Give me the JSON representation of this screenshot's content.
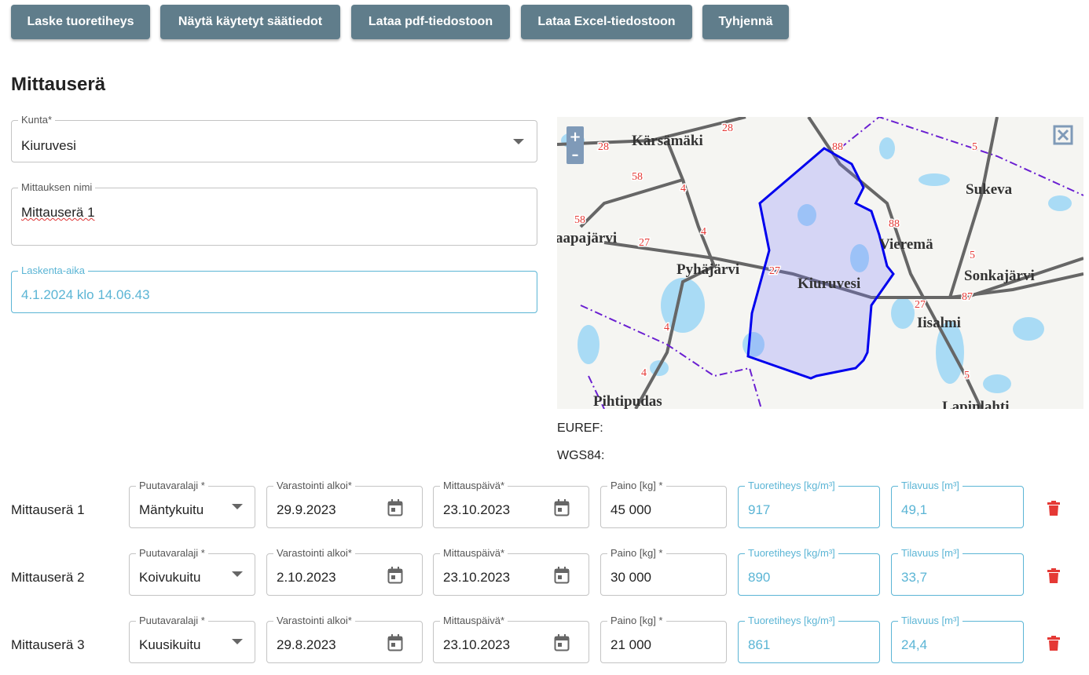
{
  "toolbar": {
    "buttons": [
      "Laske tuoretiheys",
      "Näytä käytetyt säätiedot",
      "Lataa pdf-tiedostoon",
      "Lataa Excel-tiedostoon",
      "Tyhjennä"
    ]
  },
  "section_title": "Mittauserä",
  "form": {
    "kunta": {
      "label": "Kunta*",
      "value": "Kiuruvesi"
    },
    "nimi": {
      "label": "Mittauksen nimi",
      "value": "Mittauserä 1"
    },
    "aika": {
      "label": "Laskenta-aika",
      "value": "4.1.2024 klo 14.06.43"
    }
  },
  "map": {
    "zoom_in": "+",
    "zoom_out": "–",
    "places": [
      "Kärsämäki",
      "Sukeva",
      "aapajärvi",
      "Vieremä",
      "Pyhäjärvi",
      "Sonkajärvi",
      "Kiuruvesi",
      "Iisalmi",
      "Pihtipudas",
      "Lapinlahti"
    ],
    "roads": [
      "28",
      "28",
      "58",
      "4",
      "4",
      "27",
      "58",
      "88",
      "88",
      "5",
      "5",
      "27",
      "27",
      "87",
      "4",
      "4",
      "5"
    ]
  },
  "coordinates": {
    "euref": "EUREF:",
    "wgs84": "WGS84:"
  },
  "rows": [
    {
      "name": "Mittauserä 1",
      "fields": [
        {
          "label": "Puutavaralaji *",
          "value": "Mäntykuitu"
        },
        {
          "label": "Varastointi alkoi*",
          "value": "29.9.2023"
        },
        {
          "label": "Mittauspäivä*",
          "value": "23.10.2023"
        },
        {
          "label": "Paino [kg] *",
          "value": "45 000"
        },
        {
          "label": "Tuoretiheys [kg/m³]",
          "value": "917"
        },
        {
          "label": "Tilavuus [m³]",
          "value": "49,1"
        }
      ]
    },
    {
      "name": "Mittauserä 2",
      "fields": [
        {
          "label": "Puutavaralaji *",
          "value": "Koivukuitu"
        },
        {
          "label": "Varastointi alkoi*",
          "value": "2.10.2023"
        },
        {
          "label": "Mittauspäivä*",
          "value": "23.10.2023"
        },
        {
          "label": "Paino [kg] *",
          "value": "30 000"
        },
        {
          "label": "Tuoretiheys [kg/m³]",
          "value": "890"
        },
        {
          "label": "Tilavuus [m³]",
          "value": "33,7"
        }
      ]
    },
    {
      "name": "Mittauserä 3",
      "fields": [
        {
          "label": "Puutavaralaji *",
          "value": "Kuusikuitu"
        },
        {
          "label": "Varastointi alkoi*",
          "value": "29.8.2023"
        },
        {
          "label": "Mittauspäivä*",
          "value": "23.10.2023"
        },
        {
          "label": "Paino [kg] *",
          "value": "21 000"
        },
        {
          "label": "Tuoretiheys [kg/m³]",
          "value": "861"
        },
        {
          "label": "Tilavuus [m³]",
          "value": "24,4"
        }
      ]
    }
  ]
}
